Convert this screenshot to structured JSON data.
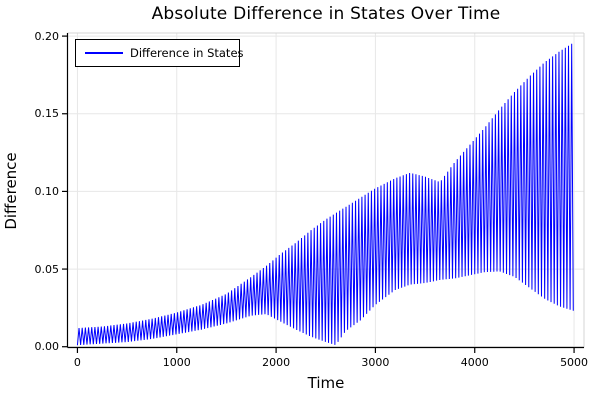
{
  "title": "Absolute Difference in States Over Time",
  "legend": {
    "label": "Difference in States"
  },
  "axes": {
    "x": {
      "label": "Time",
      "ticks": [
        "0",
        "1000",
        "2000",
        "3000",
        "4000",
        "5000"
      ],
      "tick_values": [
        0,
        1000,
        2000,
        3000,
        4000,
        5000
      ]
    },
    "y": {
      "label": "Difference",
      "ticks": [
        "0.00",
        "0.05",
        "0.10",
        "0.15",
        "0.20"
      ],
      "tick_values": [
        0,
        0.05,
        0.1,
        0.15,
        0.2
      ]
    }
  },
  "colors": {
    "line": "#0000ff",
    "grid": "#e7e7e7",
    "frame": "#d4d4d4",
    "axis": "#000000",
    "text": "#000000",
    "background": "#ffffff"
  },
  "chart_data": {
    "type": "line",
    "title": "Absolute Difference in States Over Time",
    "xlabel": "Time",
    "ylabel": "Difference",
    "xlim": [
      -100,
      5100
    ],
    "ylim": [
      -0.0005,
      0.202
    ],
    "grid": true,
    "legend_position": "top-left",
    "series": [
      {
        "name": "Difference in States",
        "color": "#0000ff",
        "signal_model": "high-frequency oscillation between lower and upper envelopes",
        "oscillation_period": 33,
        "sample_step": 16,
        "envelope": {
          "t": [
            0,
            250,
            500,
            750,
            1000,
            1250,
            1500,
            1750,
            1900,
            2050,
            2200,
            2350,
            2500,
            2600,
            2700,
            2850,
            3000,
            3200,
            3350,
            3500,
            3650,
            3800,
            3950,
            4100,
            4250,
            4400,
            4550,
            4700,
            4850,
            5000
          ],
          "upper": [
            0.012,
            0.013,
            0.015,
            0.018,
            0.022,
            0.027,
            0.034,
            0.045,
            0.052,
            0.06,
            0.067,
            0.075,
            0.082,
            0.086,
            0.09,
            0.096,
            0.102,
            0.1085,
            0.112,
            0.1095,
            0.106,
            0.119,
            0.13,
            0.141,
            0.153,
            0.164,
            0.174,
            0.183,
            0.19,
            0.196
          ],
          "lower": [
            0.001,
            0.002,
            0.003,
            0.005,
            0.008,
            0.011,
            0.015,
            0.02,
            0.021,
            0.016,
            0.011,
            0.0065,
            0.003,
            0.001,
            0.01,
            0.017,
            0.027,
            0.0365,
            0.04,
            0.041,
            0.043,
            0.044,
            0.046,
            0.048,
            0.0485,
            0.045,
            0.038,
            0.031,
            0.026,
            0.023
          ]
        }
      }
    ]
  }
}
